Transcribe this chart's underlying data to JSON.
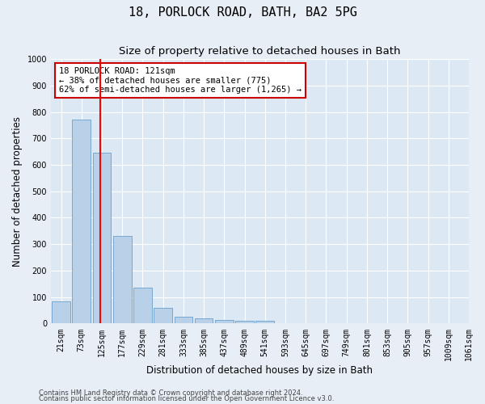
{
  "title": "18, PORLOCK ROAD, BATH, BA2 5PG",
  "subtitle": "Size of property relative to detached houses in Bath",
  "xlabel": "Distribution of detached houses by size in Bath",
  "ylabel": "Number of detached properties",
  "bar_values": [
    83,
    770,
    645,
    330,
    135,
    60,
    25,
    20,
    15,
    10,
    10,
    0,
    0,
    0,
    0,
    0,
    0,
    0,
    0,
    0
  ],
  "bar_labels": [
    "21sqm",
    "73sqm",
    "125sqm",
    "177sqm",
    "229sqm",
    "281sqm",
    "333sqm",
    "385sqm",
    "437sqm",
    "489sqm",
    "541sqm",
    "593sqm",
    "645sqm",
    "697sqm",
    "749sqm",
    "801sqm",
    "853sqm",
    "905sqm",
    "957sqm",
    "1009sqm",
    "1061sqm"
  ],
  "bar_color": "#b8d0e8",
  "bar_edgecolor": "#6aa0cc",
  "red_line_x": 1.925,
  "annotation_text": "18 PORLOCK ROAD: 121sqm\n← 38% of detached houses are smaller (775)\n62% of semi-detached houses are larger (1,265) →",
  "annotation_box_facecolor": "#ffffff",
  "annotation_box_edgecolor": "#cc0000",
  "ylim": [
    0,
    1000
  ],
  "yticks": [
    0,
    100,
    200,
    300,
    400,
    500,
    600,
    700,
    800,
    900,
    1000
  ],
  "footer1": "Contains HM Land Registry data © Crown copyright and database right 2024.",
  "footer2": "Contains public sector information licensed under the Open Government Licence v3.0.",
  "fig_bg_color": "#e8eef6",
  "axes_bg_color": "#dce8f4",
  "grid_color": "#ffffff",
  "title_fontsize": 11,
  "subtitle_fontsize": 9.5,
  "axis_label_fontsize": 8.5,
  "tick_fontsize": 7,
  "annotation_fontsize": 7.5,
  "footer_fontsize": 6
}
